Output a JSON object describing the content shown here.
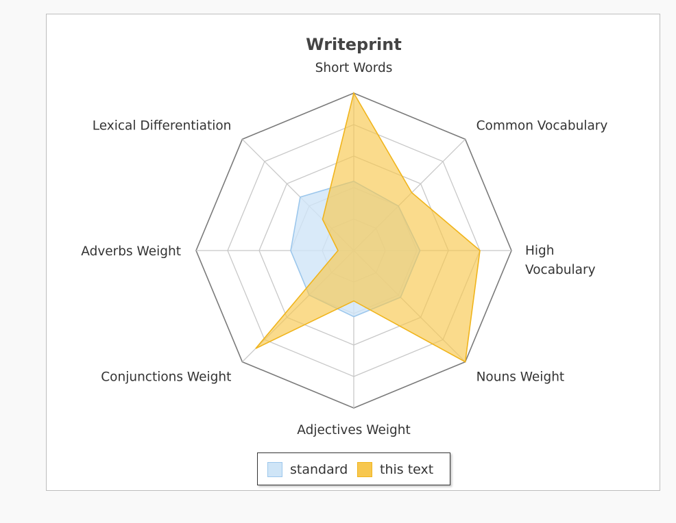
{
  "chart_data": {
    "type": "radar",
    "title": "Writeprint",
    "categories": [
      "Short Words",
      "Common Vocabulary",
      "High Vocabulary",
      "Nouns Weight",
      "Adjectives Weight",
      "Conjunctions Weight",
      "Adverbs Weight",
      "Lexical Differentiation"
    ],
    "label_lines": [
      [
        "Short Words"
      ],
      [
        "Common Vocabulary"
      ],
      [
        "High",
        "Vocabulary"
      ],
      [
        "Nouns Weight"
      ],
      [
        "Adjectives Weight"
      ],
      [
        "Conjunctions Weight"
      ],
      [
        "Adverbs Weight"
      ],
      [
        "Lexical Differentiation"
      ]
    ],
    "range": [
      0,
      5
    ],
    "grid_levels": 5,
    "series": [
      {
        "name": "standard",
        "values": [
          2.2,
          2.0,
          2.1,
          2.1,
          2.1,
          2.0,
          2.0,
          2.4
        ],
        "fill": "#cfe5f7",
        "stroke": "#9cc7ec"
      },
      {
        "name": "this text",
        "values": [
          5.0,
          2.6,
          4.0,
          5.0,
          1.6,
          4.4,
          0.5,
          1.4
        ],
        "fill": "#f7c74f",
        "stroke": "#f0b41b"
      }
    ],
    "legend": "bottom-center",
    "grid_color": "#c8c8c8",
    "outer_color": "#7a7a7a"
  }
}
